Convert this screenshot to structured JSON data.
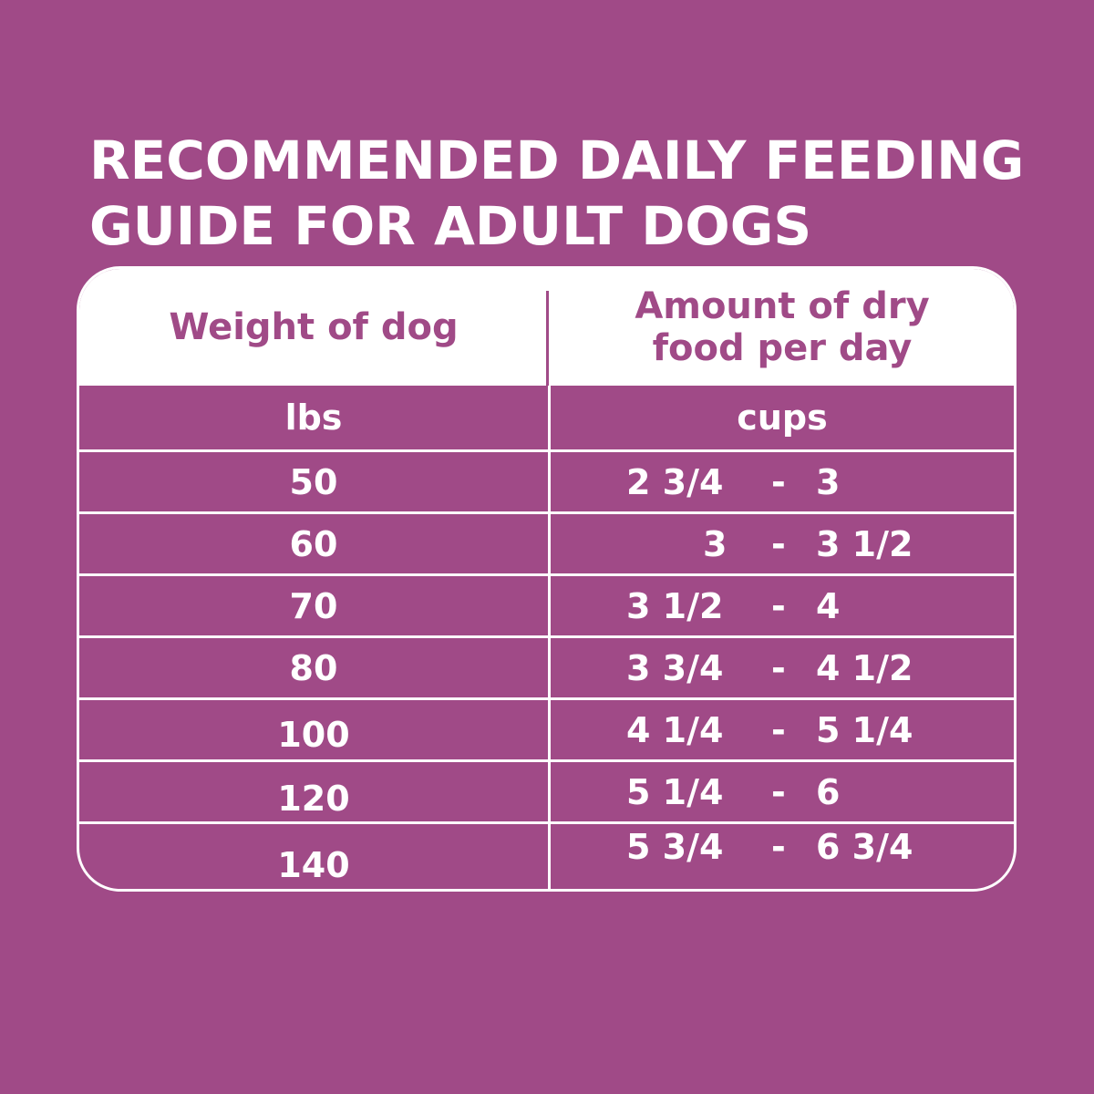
{
  "title": {
    "line1": "RECOMMENDED DAILY FEEDING",
    "line2": "GUIDE FOR ADULT DOGS"
  },
  "table": {
    "header": {
      "weight": "Weight of dog",
      "amount_line1": "Amount of dry",
      "amount_line2": "food per day"
    },
    "units": {
      "weight": "lbs",
      "amount": "cups"
    },
    "rows": [
      {
        "weight": "50",
        "min": "2 3/4",
        "sep": "-",
        "max": "3"
      },
      {
        "weight": "60",
        "min": "3",
        "sep": "-",
        "max": "3 1/2"
      },
      {
        "weight": "70",
        "min": "3 1/2",
        "sep": "-",
        "max": "4"
      },
      {
        "weight": "80",
        "min": "3 3/4",
        "sep": "-",
        "max": "4 1/2"
      },
      {
        "weight": "100",
        "min": "4 1/4",
        "sep": "-",
        "max": "5 1/4"
      },
      {
        "weight": "120",
        "min": "5 1/4",
        "sep": "-",
        "max": "6"
      },
      {
        "weight": "140",
        "min": "5 3/4",
        "sep": "-",
        "max": "6 3/4"
      }
    ]
  },
  "colors": {
    "background": "#a04a87",
    "text": "#ffffff"
  }
}
